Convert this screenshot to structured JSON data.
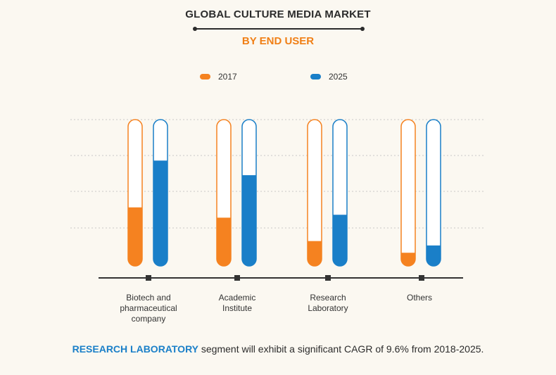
{
  "title": "GLOBAL CULTURE MEDIA MARKET",
  "subtitle": "BY END USER",
  "footer": {
    "highlight": "RESEARCH LABORATORY",
    "text": " segment will exhibit a significant CAGR of 9.6% from 2018-2025."
  },
  "colors": {
    "orange": "#f58220",
    "blue": "#1a7fc8"
  },
  "chart_data": {
    "type": "bar",
    "title": "GLOBAL CULTURE MEDIA MARKET",
    "subtitle": "BY END USER",
    "categories": [
      "Biotech and\npharmaceutical\ncompany",
      "Academic\nInstitute",
      "Research\nLaboratory",
      "Others"
    ],
    "series": [
      {
        "name": "2017",
        "color": "#f58220",
        "values": [
          40,
          33,
          17,
          9
        ]
      },
      {
        "name": "2025",
        "color": "#1a7fc8",
        "values": [
          72,
          62,
          35,
          14
        ]
      }
    ],
    "ylim": [
      0,
      100
    ],
    "grid": true,
    "legend": "top-center",
    "xlabel": "",
    "ylabel": ""
  }
}
